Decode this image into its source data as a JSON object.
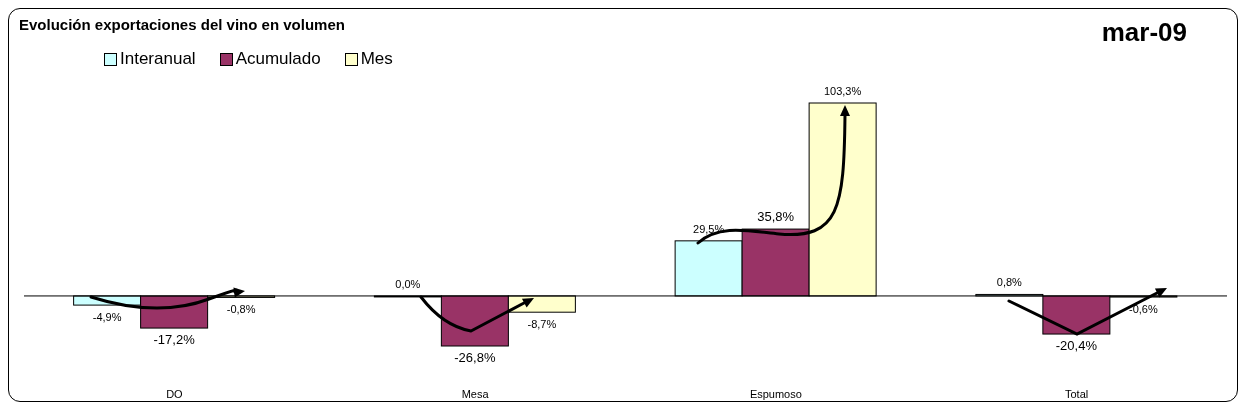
{
  "chart_data": {
    "type": "bar",
    "title": "Evolución exportaciones del vino en volumen",
    "annotations": [
      "mar-09"
    ],
    "categories": [
      "DO",
      "Mesa",
      "Espumoso",
      "Total"
    ],
    "series": [
      {
        "name": "Interanual",
        "color": "#ccffff",
        "values": [
          -4.9,
          0.0,
          29.5,
          0.8
        ],
        "value_labels": [
          "-4,9%",
          "0,0%",
          "29,5%",
          "0,8%"
        ]
      },
      {
        "name": "Acumulado",
        "color": "#993366",
        "values": [
          -17.2,
          -26.8,
          35.8,
          -20.4
        ],
        "value_labels": [
          "-17,2%",
          "-26,8%",
          "35,8%",
          "-20,4%"
        ]
      },
      {
        "name": "Mes",
        "color": "#ffffcc",
        "values": [
          -0.8,
          -8.7,
          103.3,
          -0.6
        ],
        "value_labels": [
          "-0,8%",
          "-8,7%",
          "103,3%",
          "-0,6%"
        ]
      }
    ],
    "ref_lines": [
      {
        "axis": "y",
        "value": 0,
        "color": "#000000"
      }
    ],
    "legend": "top left"
  }
}
